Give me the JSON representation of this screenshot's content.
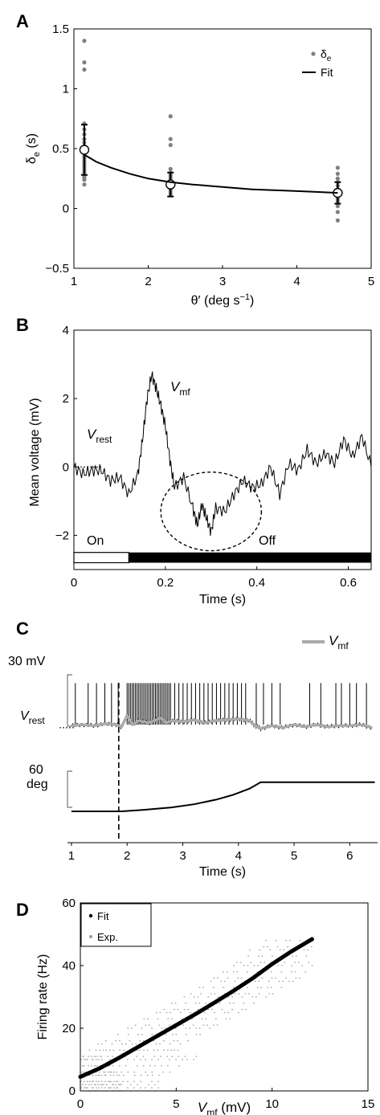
{
  "panels": {
    "A": {
      "label": "A"
    },
    "B": {
      "label": "B"
    },
    "C": {
      "label": "C"
    },
    "D": {
      "label": "D"
    }
  },
  "chart_data": [
    {
      "panel": "A",
      "type": "scatter",
      "xlabel_base": "θ′ (deg s",
      "xlabel_sup": "−1",
      "xlabel_tail": ")",
      "ylabel_base": "δ",
      "ylabel_sub": "e",
      "ylabel_tail": " (s)",
      "xlim": [
        1,
        5
      ],
      "ylim": [
        -0.5,
        1.5
      ],
      "xticks": [
        "1",
        "2",
        "3",
        "4",
        "5"
      ],
      "yticks": [
        "−0.5",
        "0",
        "0.5",
        "1",
        "1.5"
      ],
      "ytick_values": [
        -0.5,
        0,
        0.5,
        1,
        1.5
      ],
      "legend": {
        "position": "top-right",
        "scatter_base": "δ",
        "scatter_sub": "e",
        "line": "Fit"
      },
      "colors": {
        "scatter": "#808080",
        "fit": "#000000"
      },
      "groups": [
        {
          "x": 1.14,
          "points": [
            1.4,
            1.22,
            1.16,
            0.71,
            0.66,
            0.62,
            0.58,
            0.55,
            0.52,
            0.5,
            0.48,
            0.46,
            0.44,
            0.42,
            0.4,
            0.38,
            0.36,
            0.34,
            0.32,
            0.3,
            0.28,
            0.26,
            0.24,
            0.2
          ],
          "mean": 0.49,
          "err": 0.21
        },
        {
          "x": 2.3,
          "points": [
            0.77,
            0.58,
            0.53,
            0.33,
            0.3,
            0.28,
            0.26,
            0.24,
            0.22,
            0.2,
            0.18,
            0.16,
            0.14,
            0.12
          ],
          "mean": 0.2,
          "err": 0.1
        },
        {
          "x": 4.55,
          "points": [
            0.34,
            0.29,
            0.25,
            0.22,
            0.19,
            0.16,
            0.14,
            0.12,
            0.1,
            0.08,
            0.06,
            0.02,
            -0.03,
            -0.1
          ],
          "mean": 0.13,
          "err": 0.09
        }
      ],
      "fit": {
        "x": [
          1.14,
          1.3,
          1.5,
          1.75,
          2.0,
          2.3,
          2.6,
          3.0,
          3.4,
          3.8,
          4.2,
          4.55
        ],
        "y": [
          0.45,
          0.39,
          0.34,
          0.29,
          0.25,
          0.22,
          0.2,
          0.18,
          0.16,
          0.15,
          0.14,
          0.13
        ]
      }
    },
    {
      "panel": "B",
      "type": "line",
      "xlabel": "Time (s)",
      "ylabel": "Mean voltage (mV)",
      "xlim": [
        0,
        0.65
      ],
      "ylim": [
        -3,
        4
      ],
      "xticks": [
        "0",
        "0.2",
        "0.4",
        "0.6"
      ],
      "xtick_values": [
        0,
        0.2,
        0.4,
        0.6
      ],
      "yticks": [
        "−2",
        "0",
        "2",
        "4"
      ],
      "ytick_values": [
        -2,
        0,
        2,
        4
      ],
      "annotations": {
        "vmf_base": "V",
        "vmf_sub": "mf",
        "vrest_base": "V",
        "vrest_sub": "rest",
        "on": "On",
        "off": "Off"
      },
      "stimulus": {
        "on_end": 0.12,
        "bar_ylim": [
          -2.8,
          -2.5
        ]
      },
      "trace": {
        "x": [
          0.0,
          0.02,
          0.04,
          0.06,
          0.08,
          0.1,
          0.12,
          0.14,
          0.15,
          0.16,
          0.17,
          0.18,
          0.19,
          0.2,
          0.21,
          0.22,
          0.24,
          0.26,
          0.27,
          0.28,
          0.29,
          0.3,
          0.31,
          0.33,
          0.35,
          0.37,
          0.39,
          0.41,
          0.43,
          0.45,
          0.47,
          0.49,
          0.51,
          0.53,
          0.55,
          0.57,
          0.59,
          0.61,
          0.63,
          0.65
        ],
        "y": [
          0.0,
          -0.2,
          -0.1,
          -0.1,
          -0.4,
          -0.3,
          -0.8,
          -0.2,
          0.8,
          2.0,
          2.7,
          2.3,
          1.8,
          1.2,
          0.2,
          -0.6,
          -0.3,
          -1.2,
          -1.7,
          -1.1,
          -1.5,
          -1.9,
          -1.2,
          -1.3,
          -0.8,
          -0.4,
          -0.6,
          -0.5,
          0.0,
          -0.8,
          0.1,
          -0.1,
          0.5,
          0.1,
          0.4,
          0.1,
          0.8,
          0.3,
          0.9,
          0.0
        ]
      },
      "ellipse": {
        "cx": 0.3,
        "cy": -1.3,
        "rx": 0.11,
        "ry": 1.15
      }
    },
    {
      "panel": "C",
      "type": "line",
      "xlabel": "Time (s)",
      "xlim": [
        0.9,
        6.5
      ],
      "xticks": [
        "1",
        "2",
        "3",
        "4",
        "5",
        "6"
      ],
      "xtick_values": [
        1,
        2,
        3,
        4,
        5,
        6
      ],
      "scalebars": {
        "voltage": "30 mV",
        "angle_top": "60",
        "angle_bottom": "deg"
      },
      "legend": {
        "base": "V",
        "sub": "mf",
        "color": "#aaaaaa"
      },
      "vrest": {
        "base": "V",
        "sub": "rest"
      },
      "dashed_time": 1.85,
      "voltage_ylim": [
        -5,
        55
      ],
      "spike_peak": 45,
      "spikes_sparse": [
        1.07,
        1.3,
        1.45,
        1.6,
        1.72,
        1.84,
        4.32,
        4.45,
        4.6,
        4.75,
        5.28,
        5.48,
        5.75,
        5.85,
        6.0,
        6.12,
        6.3
      ],
      "burst": {
        "start": 2.0,
        "end": 4.15,
        "dense_end": 2.75
      },
      "vmf_trace": {
        "x": [
          1.0,
          1.2,
          1.4,
          1.6,
          1.8,
          1.9,
          2.0,
          2.1,
          2.2,
          2.4,
          2.6,
          2.7,
          2.8,
          3.0,
          3.2,
          3.4,
          3.6,
          3.8,
          4.0,
          4.2,
          4.3,
          4.4,
          4.6,
          4.8,
          5.0,
          5.2,
          5.4,
          5.6,
          5.8,
          6.0,
          6.2,
          6.4
        ],
        "y": [
          2,
          3,
          2,
          4,
          3,
          1,
          12,
          3,
          7,
          5,
          10,
          5,
          7,
          6,
          8,
          5,
          7,
          8,
          9,
          7,
          2,
          -1,
          2,
          0,
          3,
          1,
          3,
          1,
          2,
          2,
          3,
          0
        ]
      },
      "angle": {
        "x": [
          1.0,
          1.9,
          2.3,
          2.8,
          3.2,
          3.6,
          3.9,
          4.2,
          4.4,
          6.45
        ],
        "y": [
          0,
          0,
          2,
          5,
          9,
          15,
          21,
          29,
          37,
          37
        ],
        "ylim": [
          -2,
          45
        ]
      }
    },
    {
      "panel": "D",
      "type": "scatter",
      "xlabel_base": "V",
      "xlabel_sub": "mf",
      "xlabel_tail": " (mV)",
      "ylabel": "Firing rate (Hz)",
      "xlim": [
        0,
        15
      ],
      "ylim": [
        0,
        60
      ],
      "xticks": [
        "0",
        "5",
        "10",
        "15"
      ],
      "xtick_values": [
        0,
        5,
        10,
        15
      ],
      "yticks": [
        "0",
        "20",
        "40",
        "60"
      ],
      "ytick_values": [
        0,
        20,
        40,
        60
      ],
      "legend": {
        "position": "top-left",
        "fit": "Fit",
        "exp": "Exp."
      },
      "colors": {
        "fit": "#000000",
        "exp": "#999999"
      },
      "fit": {
        "x": [
          0,
          1,
          2,
          3,
          4,
          5,
          6,
          7,
          8,
          9,
          10,
          11,
          12.1
        ],
        "y": [
          4.5,
          7.2,
          10.5,
          14.0,
          17.5,
          21.0,
          24.5,
          28.2,
          32.0,
          36.0,
          40.5,
          44.5,
          48.5
        ]
      },
      "exp_bands_hz": [
        0,
        1,
        2,
        3,
        5,
        6,
        8,
        10,
        11,
        13,
        15,
        16,
        18,
        20,
        21,
        23,
        25,
        26,
        28,
        30,
        31,
        33,
        35,
        36,
        38,
        40,
        41,
        43,
        45,
        46,
        48
      ]
    }
  ]
}
